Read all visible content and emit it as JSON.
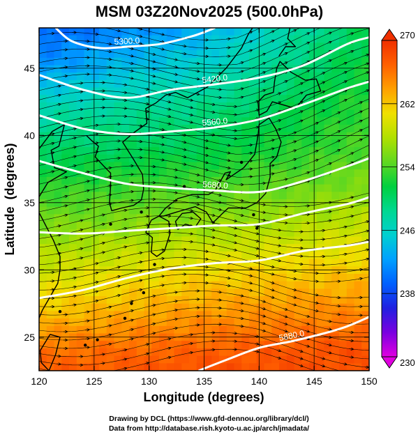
{
  "chart_data": {
    "type": "heatmap",
    "title": "MSM 03Z20Nov2025 (500.0hPa)",
    "xlabel": "Longitude (degrees)",
    "ylabel": "Latitude  (degrees)",
    "xlim": [
      120,
      150
    ],
    "ylim": [
      22.5,
      48
    ],
    "x_ticks": [
      120,
      125,
      130,
      135,
      140,
      145,
      150
    ],
    "y_ticks": [
      25,
      30,
      35,
      40,
      45
    ],
    "grid": true,
    "colorbar": {
      "min": 230,
      "max": 270,
      "ticks": [
        230,
        238,
        246,
        254,
        262,
        270
      ],
      "colors": [
        "#e000e0",
        "#7a00e0",
        "#2020e0",
        "#0060ff",
        "#00a0ff",
        "#00d0d0",
        "#00d890",
        "#00d040",
        "#60d820",
        "#b0e000",
        "#f0e000",
        "#ffa000",
        "#ff6000",
        "#f03000"
      ]
    },
    "temperature_K": {
      "lat": [
        48,
        45,
        42,
        39,
        36,
        33,
        30,
        27,
        24,
        22.5
      ],
      "lon120": [
        239,
        242,
        247,
        250,
        253,
        256,
        259,
        262,
        266,
        267
      ],
      "lon135": [
        243,
        246,
        249,
        251,
        254,
        257,
        261,
        264,
        267,
        268
      ],
      "lon150": [
        251,
        252,
        253,
        254,
        256,
        259,
        262,
        265,
        268,
        268
      ]
    },
    "height_contours": [
      {
        "label": "5300.0",
        "points": [
          [
            121.5,
            48
          ],
          [
            123,
            47
          ],
          [
            125.5,
            46.5
          ],
          [
            128,
            46.6
          ],
          [
            131,
            46.8
          ],
          [
            134,
            47.4
          ],
          [
            136,
            48
          ]
        ]
      },
      {
        "label": "5420.0",
        "points": [
          [
            120,
            44.5
          ],
          [
            124,
            43.4
          ],
          [
            128,
            42.8
          ],
          [
            132,
            43.4
          ],
          [
            136,
            43.8
          ],
          [
            140,
            44.3
          ],
          [
            144,
            45.2
          ],
          [
            148,
            46.8
          ],
          [
            150,
            47.3
          ]
        ]
      },
      {
        "label": "5560.0",
        "points": [
          [
            120,
            41.5
          ],
          [
            124,
            40.5
          ],
          [
            128,
            40.1
          ],
          [
            132,
            40.3
          ],
          [
            136,
            40.6
          ],
          [
            140,
            41.2
          ],
          [
            144,
            42.3
          ],
          [
            148,
            43.5
          ],
          [
            150,
            44
          ]
        ]
      },
      {
        "label": "5680.0",
        "points": [
          [
            120,
            38.1
          ],
          [
            124,
            37.2
          ],
          [
            128,
            36.4
          ],
          [
            132,
            36.1
          ],
          [
            136,
            35.9
          ],
          [
            140,
            35.8
          ],
          [
            144,
            36.6
          ],
          [
            148,
            37.7
          ],
          [
            150,
            38.3
          ]
        ]
      },
      {
        "label": "",
        "points": [
          [
            120,
            32.8
          ],
          [
            124,
            32.7
          ],
          [
            128,
            32.9
          ],
          [
            132,
            33.1
          ],
          [
            136,
            33.3
          ],
          [
            140,
            33.4
          ],
          [
            144,
            34.2
          ],
          [
            148,
            34.9
          ],
          [
            150,
            35.4
          ]
        ]
      },
      {
        "label": "",
        "points": [
          [
            120,
            27.9
          ],
          [
            124,
            28.5
          ],
          [
            128,
            29.4
          ],
          [
            132,
            30.1
          ],
          [
            136,
            30.5
          ],
          [
            140,
            30.7
          ],
          [
            144,
            31.4
          ],
          [
            148,
            31.8
          ],
          [
            150,
            32.1
          ]
        ]
      },
      {
        "label": "5880.0",
        "points": [
          [
            134.5,
            22.5
          ],
          [
            137,
            23.3
          ],
          [
            140,
            24.2
          ],
          [
            143,
            24.7
          ],
          [
            146,
            25.3
          ],
          [
            148,
            25.8
          ],
          [
            150,
            26.5
          ]
        ]
      }
    ]
  },
  "credits": {
    "line1": "Drawing by DCL (https://www.gfd-dennou.org/library/dcl/)",
    "line2": "Data from http://database.rish.kyoto-u.ac.jp/arch/jmadata/"
  }
}
